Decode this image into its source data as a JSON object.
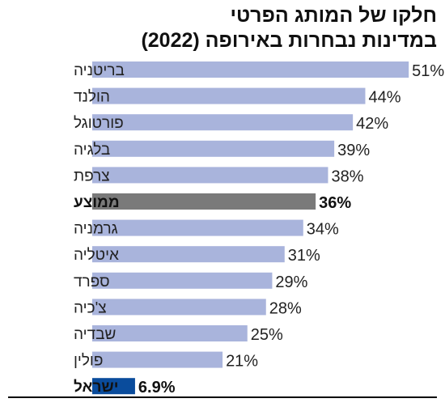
{
  "title_lines": [
    "חלקו של המותג הפרטי",
    "במדינות נבחרות באירופה (2022)"
  ],
  "colors": {
    "default_bar": "#a9b4dc",
    "average_bar": "#7a7a7a",
    "israel_bar": "#0a4c9c",
    "baseline": "#000000"
  },
  "chart_data": {
    "type": "bar",
    "orientation": "horizontal",
    "title": "חלקו של המותג הפרטי במדינות נבחרות באירופה (2022)",
    "xlabel": "",
    "ylabel": "",
    "unit": "%",
    "xlim": [
      0,
      51
    ],
    "grid": false,
    "categories": [
      "בריטניה",
      "הולנד",
      "פורטוגל",
      "בלגיה",
      "צרפת",
      "ממוצע",
      "גרמניה",
      "איטליה",
      "ספרד",
      "צ'כיה",
      "שבדיה",
      "פולין",
      "ישראל"
    ],
    "values": [
      51,
      44,
      42,
      39,
      38,
      36,
      34,
      31,
      29,
      28,
      25,
      21,
      6.9
    ],
    "value_labels": [
      "51%",
      "44%",
      "42%",
      "39%",
      "38%",
      "36%",
      "34%",
      "31%",
      "29%",
      "28%",
      "25%",
      "21%",
      "6.9%"
    ],
    "highlight": {
      "ממוצע": "average",
      "ישראל": "israel"
    }
  }
}
